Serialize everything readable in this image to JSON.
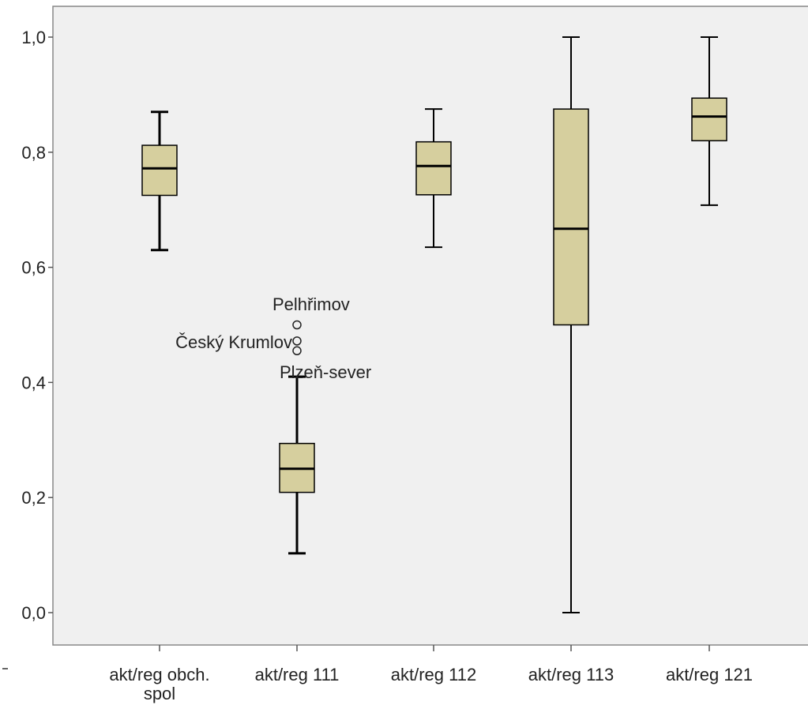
{
  "chart_data": {
    "type": "boxplot",
    "ylim": [
      0,
      1.0
    ],
    "y_ticks": [
      "0,0",
      "0,2",
      "0,4",
      "0,6",
      "0,8",
      "1,0"
    ],
    "y_tick_values": [
      0,
      0.2,
      0.4,
      0.6,
      0.8,
      1.0
    ],
    "grid": false,
    "colors": {
      "box_fill": "#d6cf9e",
      "plot_bg": "#f0f0f0",
      "stroke": "#000000"
    },
    "categories": [
      "akt/reg obch. spol",
      "akt/reg 111",
      "akt/reg 112",
      "akt/reg 113",
      "akt/reg 121"
    ],
    "boxes": [
      {
        "category": "akt/reg obch. spol",
        "whisker_low": 0.63,
        "q1": 0.725,
        "median": 0.772,
        "q3": 0.812,
        "whisker_high": 0.87
      },
      {
        "category": "akt/reg 111",
        "whisker_low": 0.103,
        "q1": 0.209,
        "median": 0.25,
        "q3": 0.294,
        "whisker_high": 0.41
      },
      {
        "category": "akt/reg 112",
        "whisker_low": 0.635,
        "q1": 0.726,
        "median": 0.776,
        "q3": 0.818,
        "whisker_high": 0.875
      },
      {
        "category": "akt/reg 113",
        "whisker_low": 0.0,
        "q1": 0.5,
        "median": 0.667,
        "q3": 0.875,
        "whisker_high": 1.0
      },
      {
        "category": "akt/reg 121",
        "whisker_low": 0.708,
        "q1": 0.82,
        "median": 0.862,
        "q3": 0.894,
        "whisker_high": 1.0
      }
    ],
    "outliers": [
      {
        "category": "akt/reg 111",
        "value": 0.5,
        "label": "Pelhřimov"
      },
      {
        "category": "akt/reg 111",
        "value": 0.472,
        "label": "Český Krumlov"
      },
      {
        "category": "akt/reg 111",
        "value": 0.455,
        "label": "Plzeň-sever"
      }
    ]
  }
}
